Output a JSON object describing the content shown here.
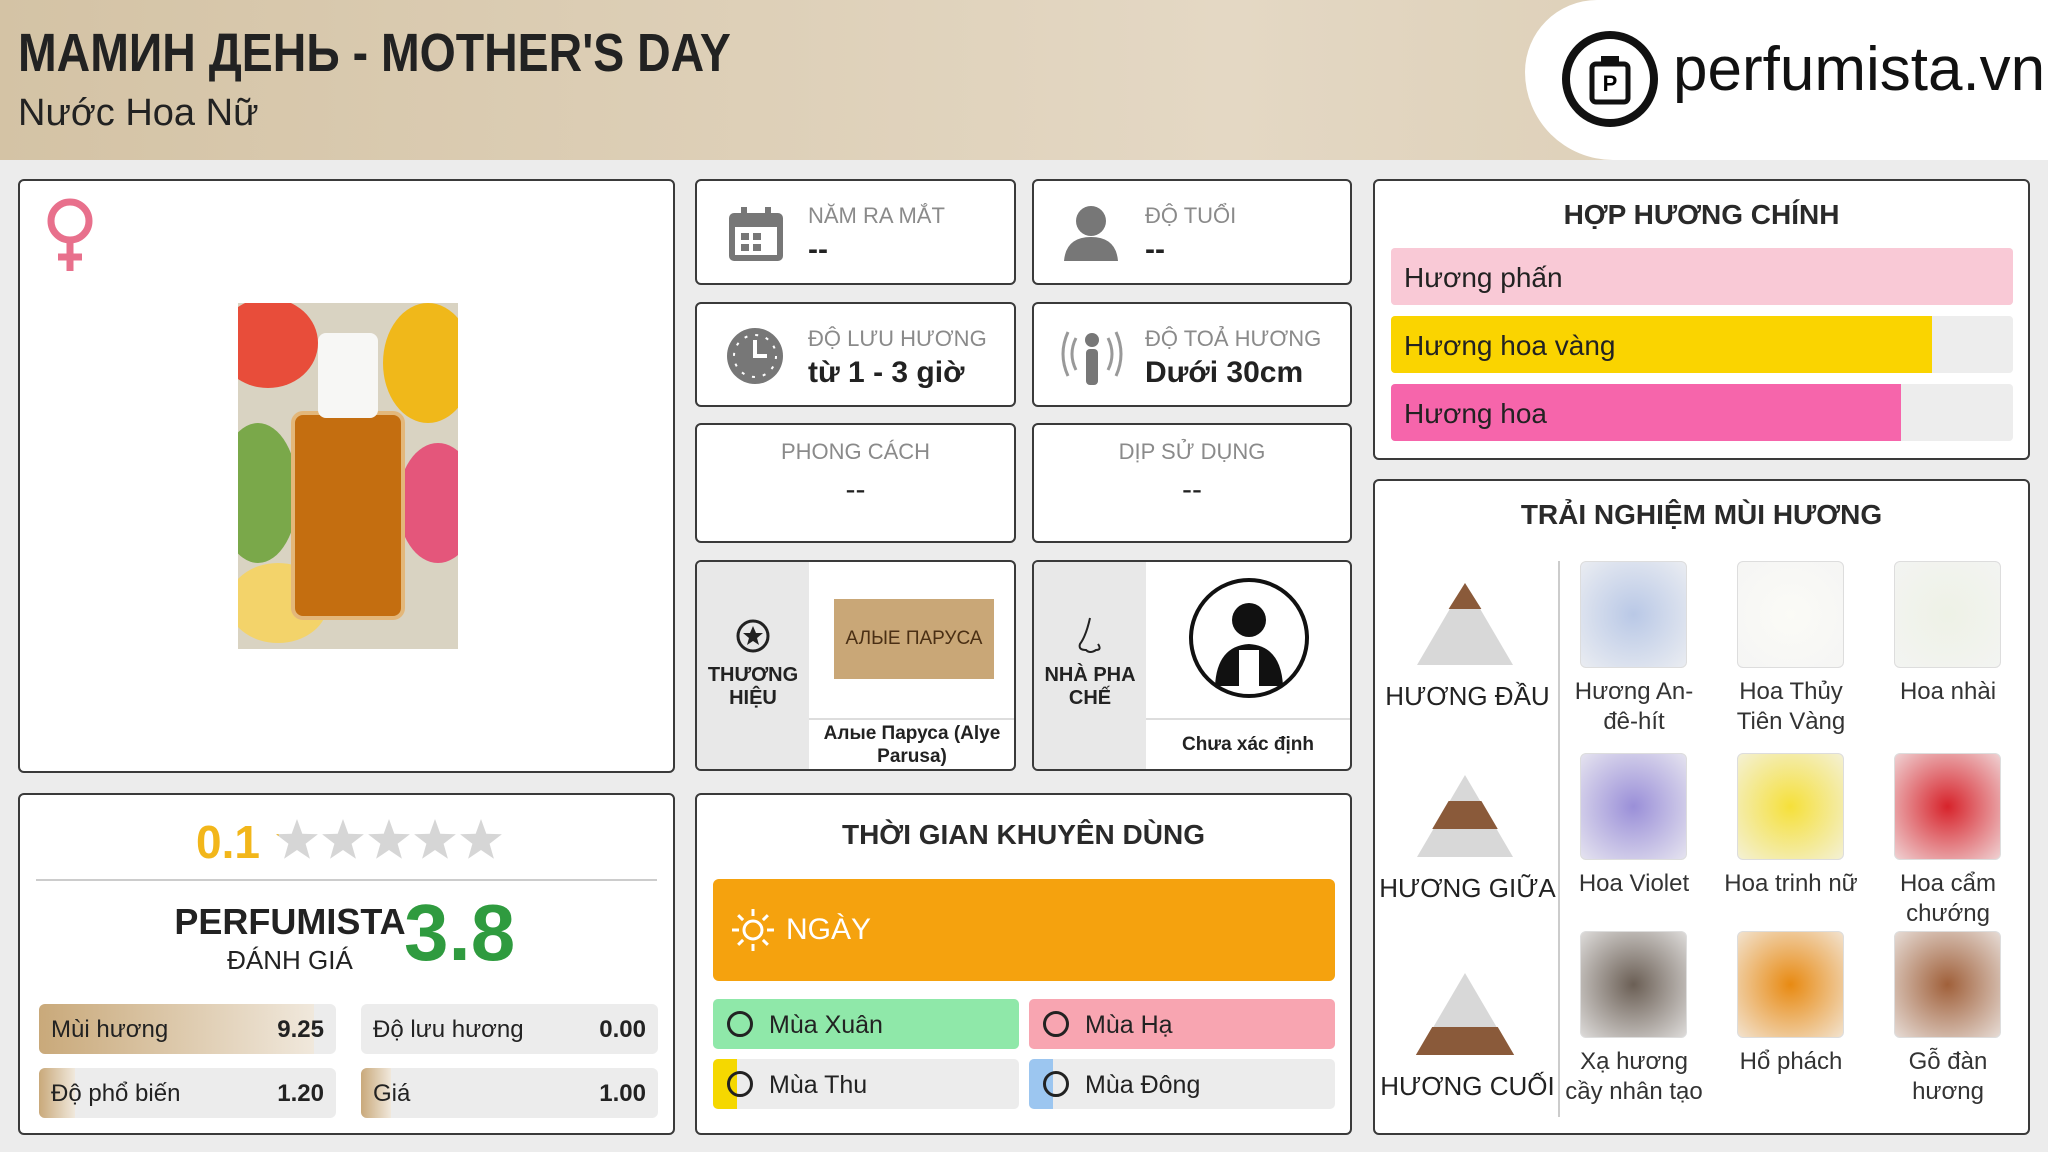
{
  "header": {
    "title": "МАМИН ДЕНЬ - MOTHER'S DAY",
    "subtitle": "Nước Hoa Nữ",
    "logo_text": "perfumista.vn"
  },
  "info_cards": [
    {
      "label": "NĂM RA MẮT",
      "value": "--"
    },
    {
      "label": "ĐỘ TUỔI",
      "value": "--"
    },
    {
      "label": "ĐỘ LƯU HƯƠNG",
      "value": "từ 1 - 3 giờ"
    },
    {
      "label": "ĐỘ TOẢ HƯƠNG",
      "value": "Dưới 30cm"
    },
    {
      "label": "PHONG CÁCH",
      "value": "--"
    },
    {
      "label": "DỊP SỬ DỤNG",
      "value": "--"
    }
  ],
  "brand": {
    "label": "THƯƠNG HIỆU",
    "logo_text": "АЛЫЕ ПАРУСА",
    "name": "Алые Паруса (Alye Parusa)"
  },
  "perfumer": {
    "label": "NHÀ PHA CHẾ",
    "name": "Chưa xác định"
  },
  "rating": {
    "user_score": 0.1,
    "user_scale": [
      0,
      5
    ],
    "title": "PERFUMISTA",
    "subtitle": "ĐÁNH GIÁ",
    "score": 3.8,
    "criteria": {
      "scale": [
        0,
        10
      ],
      "items": [
        {
          "name": "Mùi hương",
          "value": 9.25,
          "value_label": "9.25"
        },
        {
          "name": "Độ lưu hương",
          "value": 0,
          "value_label": "0.00"
        },
        {
          "name": "Độ phổ biến",
          "value": 1.2,
          "value_label": "1.20"
        },
        {
          "name": "Giá",
          "value": 1,
          "value_label": "1.00"
        }
      ]
    }
  },
  "usage_time": {
    "title": "THỜI GIAN KHUYÊN DÙNG",
    "day": {
      "name": "NGÀY",
      "value": 100,
      "color": "#f5a20e"
    },
    "seasons": [
      {
        "name": "Mùa Xuân",
        "value": 100,
        "color": "#8fe8a9"
      },
      {
        "name": "Mùa Hạ",
        "value": 100,
        "color": "#f8a5b1"
      },
      {
        "name": "Mùa Thu",
        "value": 8,
        "color": "#f5d800"
      },
      {
        "name": "Mùa Đông",
        "value": 8,
        "color": "#9cc6f0"
      }
    ]
  },
  "accords": {
    "title": "HỢP HƯƠNG CHÍNH",
    "items": [
      {
        "name": "Hương phấn",
        "value": 100,
        "color": "#f9c9d6"
      },
      {
        "name": "Hương hoa vàng",
        "value": 87,
        "color": "#fad400"
      },
      {
        "name": "Hương hoa",
        "value": 82,
        "color": "#f665ab"
      }
    ]
  },
  "notes": {
    "title": "TRẢI NGHIỆM MÙI HƯƠNG",
    "tiers": [
      {
        "name": "HƯƠNG ĐẦU",
        "notes": [
          "Hương An-đê-hít",
          "Hoa Thủy Tiên Vàng",
          "Hoa nhài"
        ]
      },
      {
        "name": "HƯƠNG GIỮA",
        "notes": [
          "Hoa Violet",
          "Hoa trinh nữ",
          "Hoa cẩm chướng"
        ]
      },
      {
        "name": "HƯƠNG CUỐI",
        "notes": [
          "Xạ hương cầy nhân tạo",
          "Hổ phách",
          "Gỗ đàn hương"
        ]
      }
    ]
  }
}
